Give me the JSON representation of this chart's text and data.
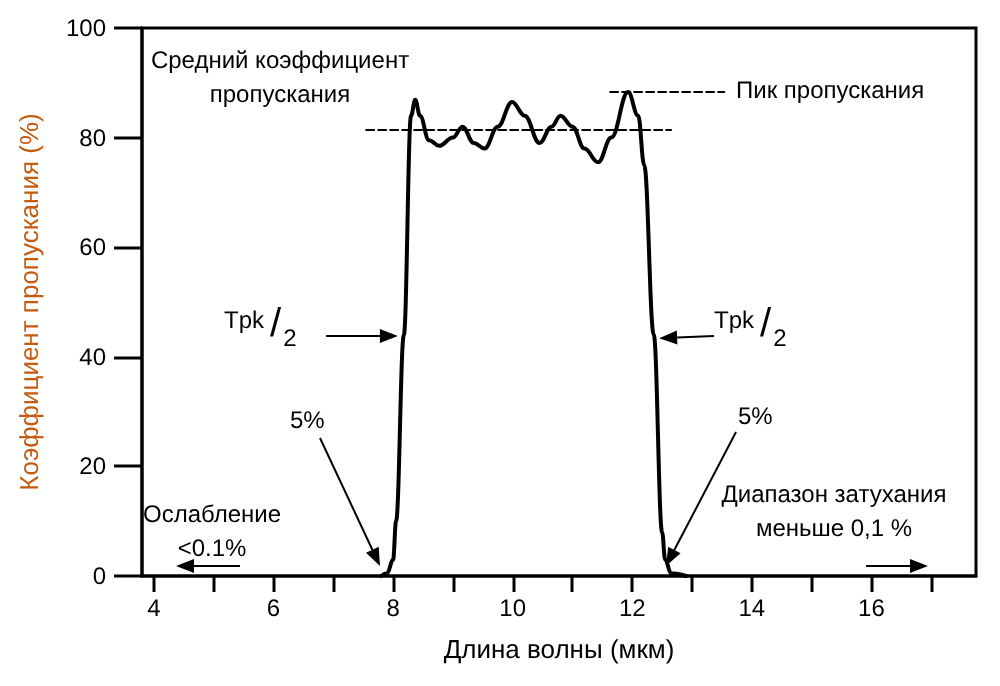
{
  "chart_data": {
    "type": "line",
    "xlabel": "Длина волны (мкм)",
    "ylabel": "Коэффициент пропускания (%)",
    "xlim": [
      3.8,
      17.75
    ],
    "ylim": [
      0,
      100
    ],
    "xticks": [
      4,
      {
        "value": 5,
        "label": null
      },
      6,
      {
        "value": 7,
        "label": null
      },
      8,
      {
        "value": 9,
        "label": null
      },
      10,
      {
        "value": 11,
        "label": null
      },
      12,
      {
        "value": 13,
        "label": null
      },
      14,
      {
        "value": 15,
        "label": null
      },
      16,
      {
        "value": 17,
        "label": null
      }
    ],
    "yticks": [
      0,
      20,
      40,
      60,
      80,
      100
    ],
    "grid": false,
    "marker": "none",
    "series": [
      {
        "color": "#000000",
        "line_style": "solid",
        "x": [
          7.8,
          7.9,
          8.0,
          8.05,
          8.18,
          8.3,
          8.37,
          8.45,
          8.6,
          8.77,
          9.0,
          9.16,
          9.35,
          9.53,
          9.75,
          9.99,
          10.2,
          10.45,
          10.65,
          10.8,
          11.0,
          11.2,
          11.43,
          11.65,
          11.93,
          12.1,
          12.2,
          12.36,
          12.5,
          12.55,
          12.65,
          12.9
        ],
        "values": [
          0,
          0.5,
          3,
          10,
          44,
          84,
          86.9,
          84,
          79.5,
          78.5,
          80,
          82,
          79,
          78,
          82,
          86.5,
          84,
          79,
          82,
          84,
          82,
          78,
          75.5,
          80,
          88.3,
          84,
          75,
          44,
          8,
          3,
          0.5,
          0
        ]
      },
      {
        "color": "#000000",
        "line_style": "dashed",
        "x": [
          7.55,
          12.65
        ],
        "values": [
          81.4,
          81.4
        ]
      },
      {
        "color": "#000000",
        "line_style": "dashed",
        "x": [
          11.63,
          13.54
        ],
        "values": [
          88.3,
          88.3
        ]
      }
    ],
    "annotations": [
      "Средний коэффициент пропускания",
      "Пик пропускания",
      {
        "text": "Tpk/2",
        "x": 8.08,
        "y": 43.8
      },
      {
        "text": "Tpk/2",
        "x": 12.45,
        "y": 43.4
      },
      "5%",
      "5%",
      "Ослабление <0.1%",
      "Диапазон затухания меньше 0,1 %"
    ]
  }
}
